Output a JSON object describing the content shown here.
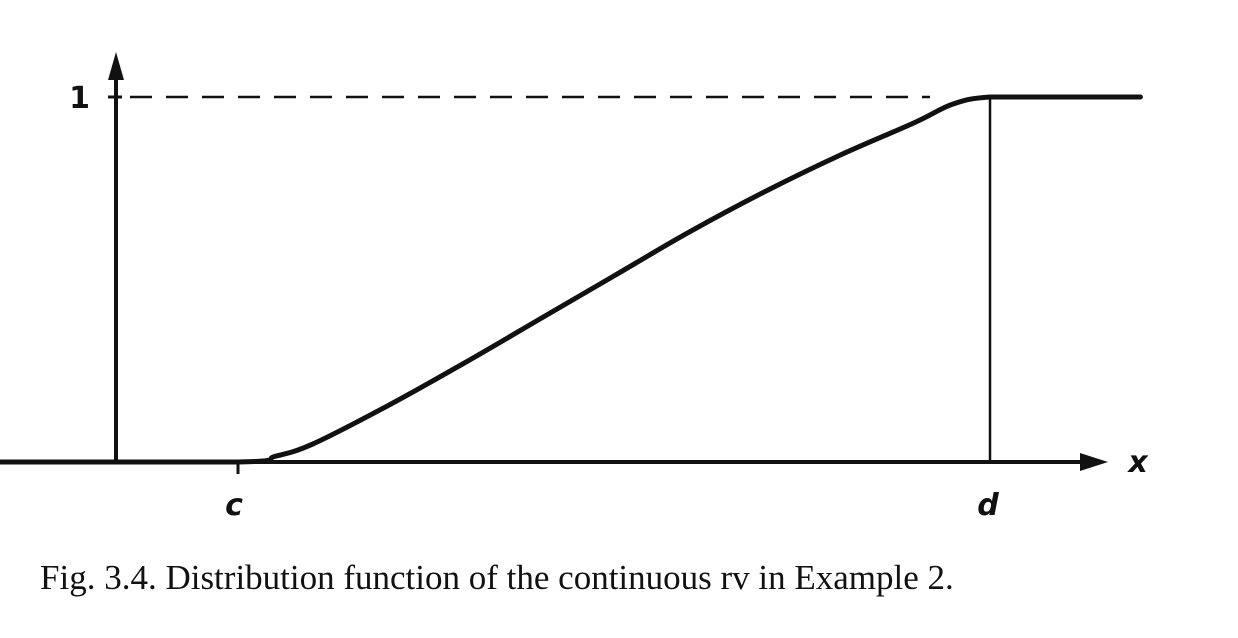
{
  "caption": "Fig. 3.4.  Distribution function of the continuous rv in Example 2.",
  "chart_data": {
    "type": "line",
    "title": "",
    "xlabel": "x",
    "ylabel": "",
    "x_tick_labels": [
      "c",
      "d"
    ],
    "y_tick_labels": [
      "1"
    ],
    "xlim": [
      -0.33,
      1.26
    ],
    "ylim": [
      0,
      1.1
    ],
    "grid": false,
    "legend": "none",
    "reference_lines": [
      {
        "kind": "horizontal-dashed",
        "y": 1,
        "label": "1"
      },
      {
        "kind": "vertical-solid",
        "x": 1,
        "label": "d"
      }
    ],
    "series": [
      {
        "x": [
          -0.33,
          0,
          0.05,
          0.1,
          0.2,
          0.3,
          0.4,
          0.5,
          0.6,
          0.7,
          0.8,
          0.9,
          0.95,
          1,
          1.1,
          1.2
        ],
        "y": [
          0,
          0,
          0.016,
          0.05,
          0.155,
          0.27,
          0.39,
          0.51,
          0.63,
          0.74,
          0.84,
          0.93,
          0.98,
          1,
          1,
          1
        ]
      }
    ],
    "colors": {
      "ink": "#111111",
      "background": "#ffffff"
    }
  }
}
